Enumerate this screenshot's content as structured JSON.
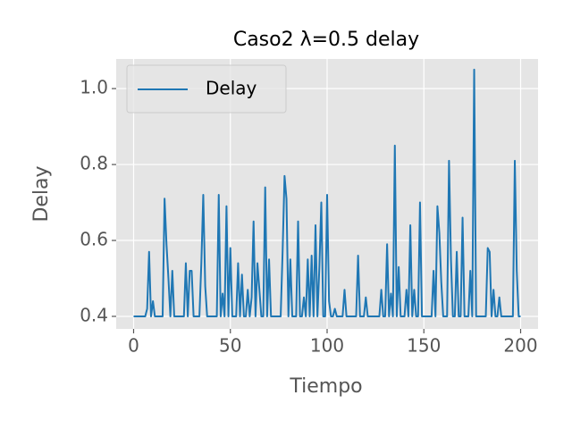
{
  "chart_data": {
    "type": "line",
    "title": "Caso2 λ=0.5 delay",
    "xlabel": "Tiempo",
    "ylabel": "Delay",
    "x": [
      0,
      1,
      2,
      3,
      4,
      5,
      6,
      7,
      8,
      9,
      10,
      11,
      12,
      13,
      14,
      15,
      16,
      17,
      18,
      19,
      20,
      21,
      22,
      23,
      24,
      25,
      26,
      27,
      28,
      29,
      30,
      31,
      32,
      33,
      34,
      35,
      36,
      37,
      38,
      39,
      40,
      41,
      42,
      43,
      44,
      45,
      46,
      47,
      48,
      49,
      50,
      51,
      52,
      53,
      54,
      55,
      56,
      57,
      58,
      59,
      60,
      61,
      62,
      63,
      64,
      65,
      66,
      67,
      68,
      69,
      70,
      71,
      72,
      73,
      74,
      75,
      76,
      77,
      78,
      79,
      80,
      81,
      82,
      83,
      84,
      85,
      86,
      87,
      88,
      89,
      90,
      91,
      92,
      93,
      94,
      95,
      96,
      97,
      98,
      99,
      100,
      101,
      102,
      103,
      104,
      105,
      106,
      107,
      108,
      109,
      110,
      111,
      112,
      113,
      114,
      115,
      116,
      117,
      118,
      119,
      120,
      121,
      122,
      123,
      124,
      125,
      126,
      127,
      128,
      129,
      130,
      131,
      132,
      133,
      134,
      135,
      136,
      137,
      138,
      139,
      140,
      141,
      142,
      143,
      144,
      145,
      146,
      147,
      148,
      149,
      150,
      151,
      152,
      153,
      154,
      155,
      156,
      157,
      158,
      159,
      160,
      161,
      162,
      163,
      164,
      165,
      166,
      167,
      168,
      169,
      170,
      171,
      172,
      173,
      174,
      175,
      176,
      177,
      178,
      179,
      180,
      181,
      182,
      183,
      184,
      185,
      186,
      187,
      188,
      189,
      190,
      191,
      192,
      193,
      194,
      195,
      196,
      197,
      198,
      199,
      200
    ],
    "series": [
      {
        "name": "Delay",
        "color": "#1f77b4",
        "values": [
          0.4,
          0.4,
          0.4,
          0.4,
          0.4,
          0.4,
          0.4,
          0.42,
          0.57,
          0.4,
          0.44,
          0.4,
          0.4,
          0.4,
          0.4,
          0.4,
          0.71,
          0.59,
          0.5,
          0.4,
          0.52,
          0.4,
          0.4,
          0.4,
          0.4,
          0.4,
          0.4,
          0.54,
          0.4,
          0.52,
          0.52,
          0.4,
          0.4,
          0.4,
          0.4,
          0.54,
          0.72,
          0.48,
          0.4,
          0.4,
          0.4,
          0.4,
          0.4,
          0.4,
          0.72,
          0.4,
          0.46,
          0.4,
          0.69,
          0.4,
          0.58,
          0.4,
          0.4,
          0.4,
          0.54,
          0.4,
          0.51,
          0.4,
          0.4,
          0.47,
          0.4,
          0.45,
          0.65,
          0.4,
          0.54,
          0.47,
          0.4,
          0.4,
          0.74,
          0.4,
          0.55,
          0.4,
          0.4,
          0.4,
          0.4,
          0.4,
          0.4,
          0.57,
          0.77,
          0.71,
          0.4,
          0.55,
          0.4,
          0.4,
          0.4,
          0.65,
          0.4,
          0.4,
          0.45,
          0.4,
          0.55,
          0.4,
          0.56,
          0.4,
          0.64,
          0.4,
          0.53,
          0.7,
          0.4,
          0.4,
          0.72,
          0.44,
          0.4,
          0.4,
          0.42,
          0.4,
          0.4,
          0.4,
          0.4,
          0.47,
          0.4,
          0.4,
          0.4,
          0.4,
          0.4,
          0.4,
          0.56,
          0.4,
          0.4,
          0.4,
          0.45,
          0.4,
          0.4,
          0.4,
          0.4,
          0.4,
          0.4,
          0.4,
          0.47,
          0.4,
          0.4,
          0.59,
          0.4,
          0.46,
          0.4,
          0.85,
          0.4,
          0.53,
          0.4,
          0.4,
          0.4,
          0.47,
          0.4,
          0.64,
          0.4,
          0.47,
          0.4,
          0.4,
          0.7,
          0.4,
          0.4,
          0.4,
          0.4,
          0.4,
          0.4,
          0.52,
          0.4,
          0.69,
          0.62,
          0.49,
          0.4,
          0.4,
          0.4,
          0.81,
          0.55,
          0.4,
          0.4,
          0.57,
          0.4,
          0.4,
          0.66,
          0.4,
          0.4,
          0.4,
          0.52,
          0.4,
          1.05,
          0.4,
          0.4,
          0.4,
          0.4,
          0.4,
          0.4,
          0.58,
          0.57,
          0.4,
          0.47,
          0.4,
          0.4,
          0.45,
          0.4,
          0.4,
          0.4,
          0.4,
          0.4,
          0.4,
          0.4,
          0.81,
          0.52,
          0.4,
          0.4
        ]
      }
    ],
    "xlim": [
      -9,
      209
    ],
    "xticks": [
      0,
      50,
      100,
      150,
      200
    ],
    "ylim": [
      0.367,
      1.078
    ],
    "yticks": [
      0.4,
      0.6,
      0.8,
      {
        "value": 1,
        "label": "1.0"
      }
    ],
    "grid": true,
    "legend": "upper left"
  }
}
